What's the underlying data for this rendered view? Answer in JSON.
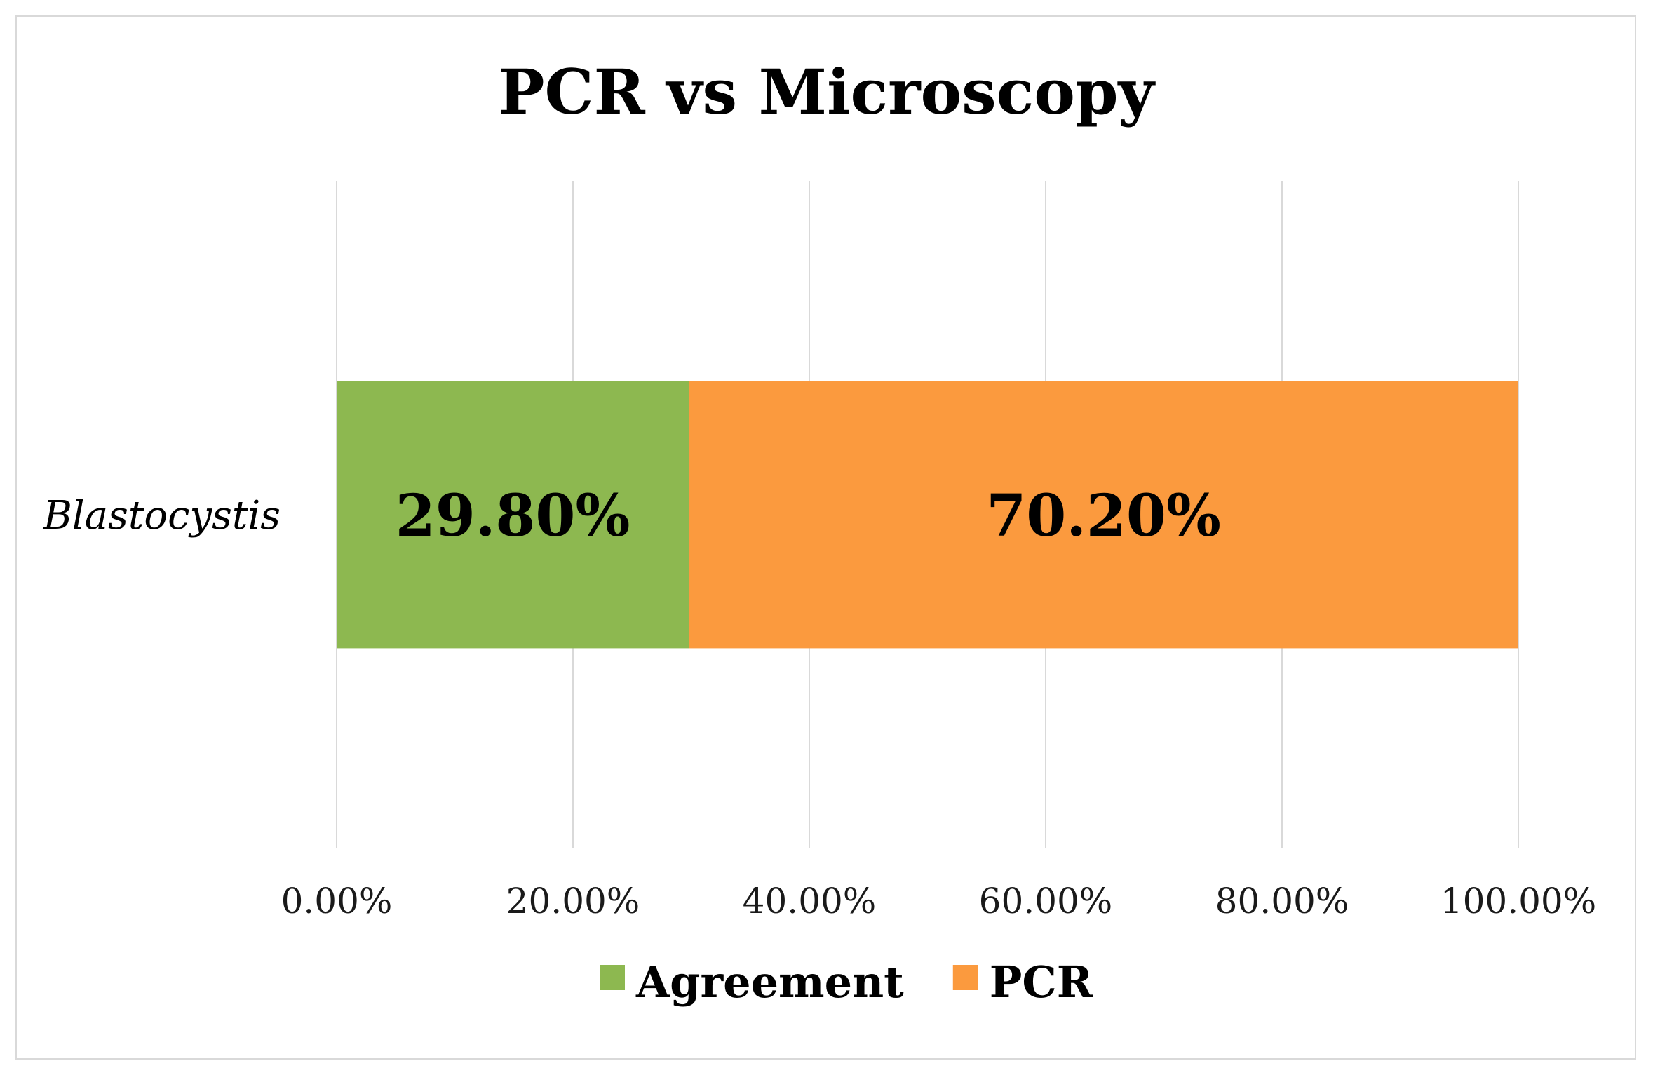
{
  "chart_data": {
    "type": "bar",
    "orientation": "horizontal",
    "stacked": true,
    "title": "PCR vs Microscopy",
    "categories": [
      "Blastocystis"
    ],
    "series": [
      {
        "name": "Agreement",
        "values": [
          29.8
        ],
        "label": "29.80%",
        "color": "#8db850"
      },
      {
        "name": "PCR",
        "values": [
          70.2
        ],
        "label": "70.20%",
        "color": "#fb9a3e"
      }
    ],
    "xlim": [
      0,
      100
    ],
    "xticks": [
      0,
      20,
      40,
      60,
      80,
      100
    ],
    "xtick_labels": [
      "0.00%",
      "20.00%",
      "40.00%",
      "60.00%",
      "80.00%",
      "100.00%"
    ],
    "grid": "vertical",
    "legend_position": "bottom"
  }
}
